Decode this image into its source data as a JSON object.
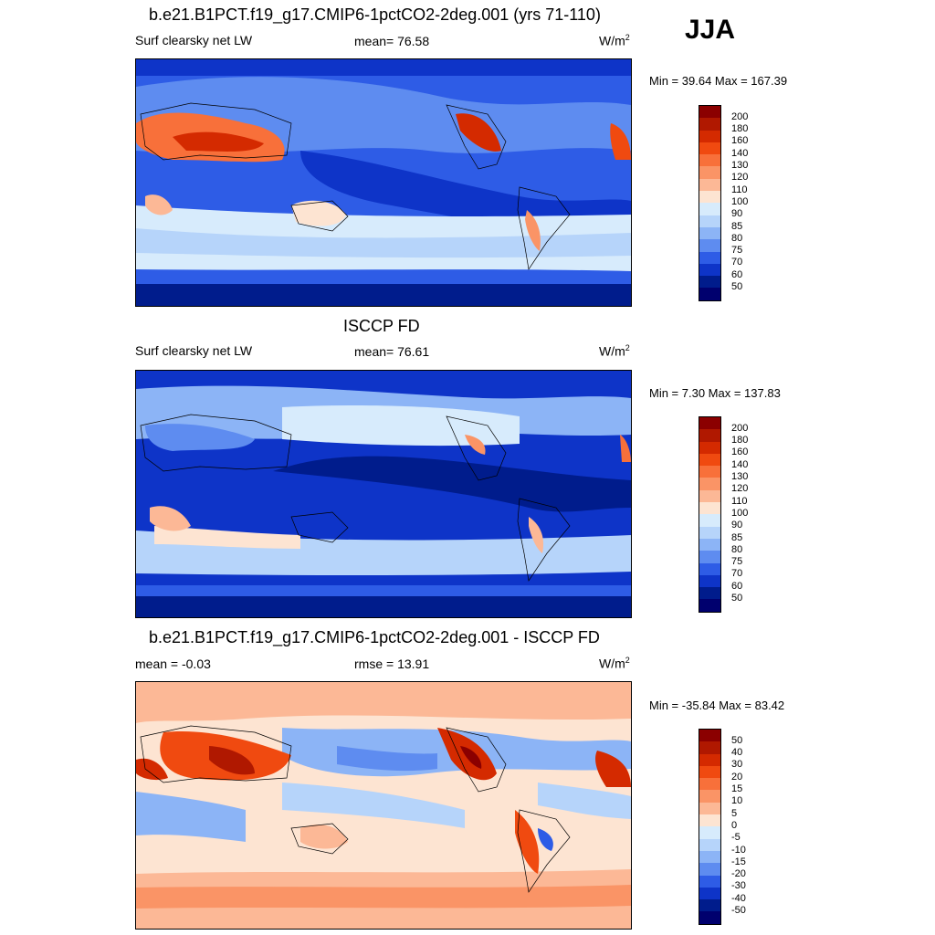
{
  "season": "JJA",
  "panels": [
    {
      "title": "b.e21.B1PCT.f19_g17.CMIP6-1pctCO2-2deg.001 (yrs 71-110)",
      "left_label": "Surf clearsky net LW",
      "center_label": "mean=  76.58",
      "unit": "W/m",
      "unit_sup": "2",
      "minmax": "Min =  39.64 Max = 167.39",
      "palette": "abs",
      "ticks": [
        "200",
        "180",
        "160",
        "140",
        "130",
        "120",
        "110",
        "100",
        "90",
        "85",
        "80",
        "75",
        "70",
        "60",
        "50"
      ]
    },
    {
      "title": "ISCCP FD",
      "left_label": "Surf clearsky net LW",
      "center_label": "mean=  76.61",
      "unit": "W/m",
      "unit_sup": "2",
      "minmax": "Min =   7.30 Max = 137.83",
      "palette": "abs",
      "ticks": [
        "200",
        "180",
        "160",
        "140",
        "130",
        "120",
        "110",
        "100",
        "90",
        "85",
        "80",
        "75",
        "70",
        "60",
        "50"
      ]
    },
    {
      "title": "b.e21.B1PCT.f19_g17.CMIP6-1pctCO2-2deg.001 - ISCCP FD",
      "left_label": "mean =  -0.03",
      "center_label": "rmse =  13.91",
      "unit": "W/m",
      "unit_sup": "2",
      "minmax": "Min = -35.84 Max =  83.42",
      "palette": "diff",
      "ticks": [
        "50",
        "40",
        "30",
        "20",
        "15",
        "10",
        "5",
        "0",
        "-5",
        "-10",
        "-15",
        "-20",
        "-30",
        "-40",
        "-50"
      ]
    }
  ],
  "colors": {
    "abs": [
      "#8b0000",
      "#b01800",
      "#d42a00",
      "#f04a10",
      "#f8703a",
      "#fa9466",
      "#fcb896",
      "#fde4d2",
      "#d7ebfc",
      "#b6d4fa",
      "#8cb4f6",
      "#5e8cf0",
      "#2e5ce6",
      "#0e34c8",
      "#001c8c",
      "#00006e"
    ],
    "diff": [
      "#8b0000",
      "#b01800",
      "#d42a00",
      "#f04a10",
      "#f8703a",
      "#fa9466",
      "#fcb896",
      "#fde4d2",
      "#d7ebfc",
      "#b6d4fa",
      "#8cb4f6",
      "#5e8cf0",
      "#2e5ce6",
      "#0e34c8",
      "#001c8c",
      "#00006e"
    ]
  }
}
